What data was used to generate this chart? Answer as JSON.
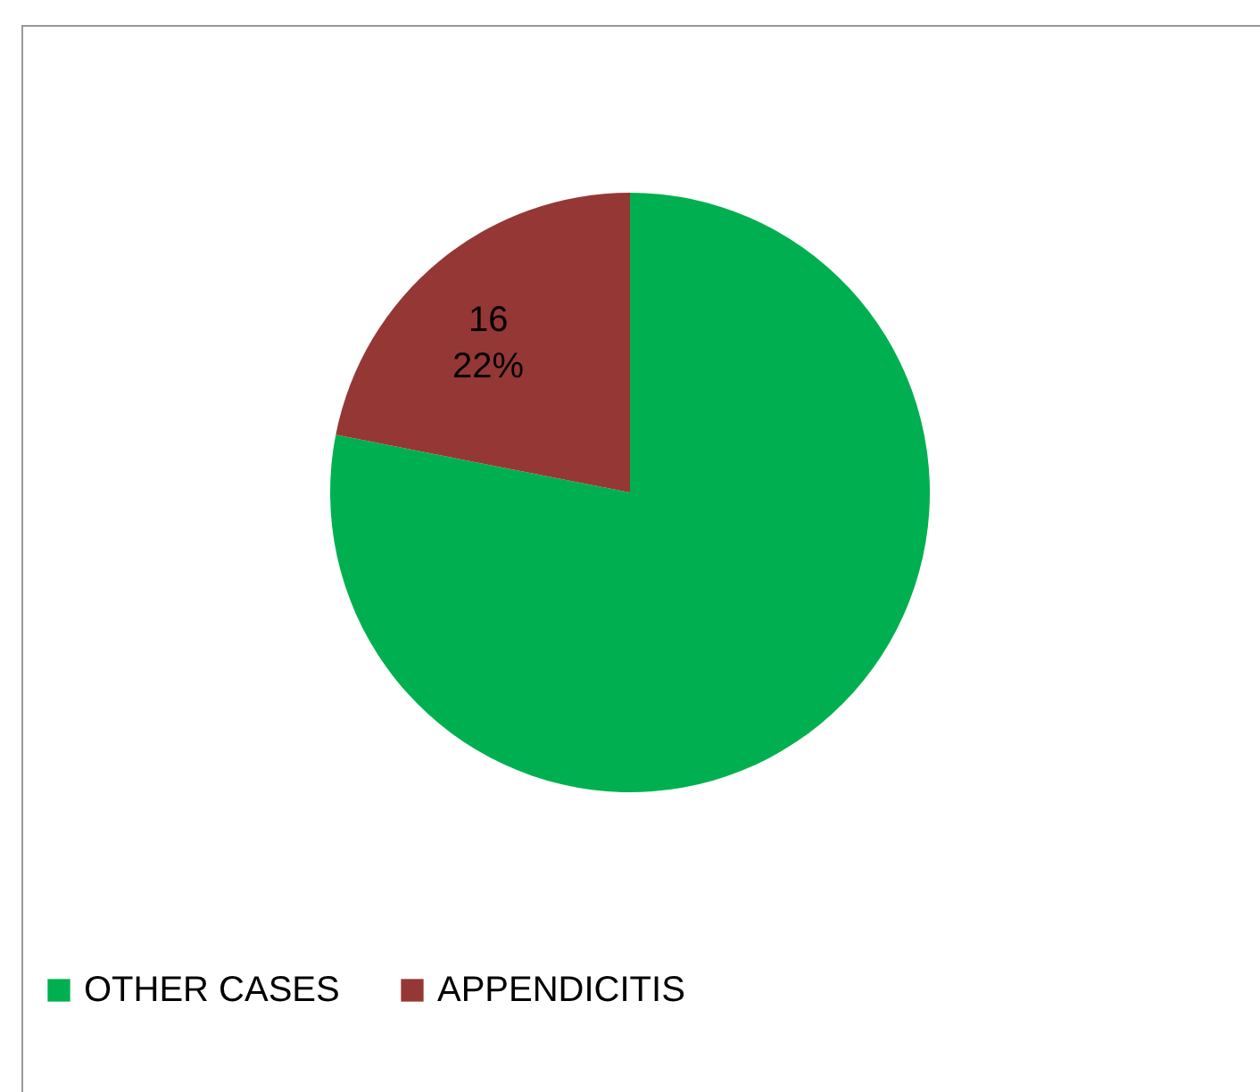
{
  "chart_data": {
    "type": "pie",
    "categories": [
      "OTHER CASES",
      "APPENDICITIS"
    ],
    "values": [
      57,
      16
    ],
    "colors": [
      "#00b050",
      "#953735"
    ],
    "value_labels": [
      null,
      "16\n22%"
    ],
    "legend": "bottom"
  }
}
